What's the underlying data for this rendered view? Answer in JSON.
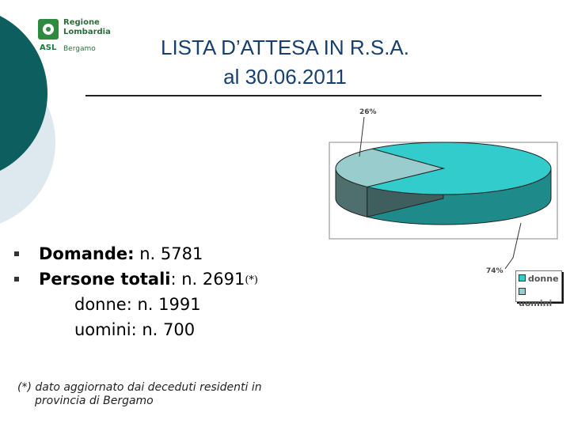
{
  "logo": {
    "line1": "Regione",
    "line2": "Lombardia",
    "asl": "ASL",
    "city": "Bergamo"
  },
  "title": {
    "line1": "LISTA D’ATTESA IN R.S.A.",
    "line2": "al 30.06.2011"
  },
  "bullets": [
    {
      "label": "Domande:",
      "value": " n. 5781"
    },
    {
      "label": "Persone totali",
      "value": ": n. 2691",
      "ref": "(*)"
    }
  ],
  "sub_items": [
    "donne: n. 1991",
    "uomini: n. 700"
  ],
  "footnote": {
    "line1": "(*) dato aggiornato dai deceduti residenti in",
    "line2": "provincia di Bergamo"
  },
  "colors": {
    "donne": "#33cccc",
    "uomini": "#99cccc",
    "title": "#17406e",
    "accent": "#0d5e5e"
  },
  "chart_data": {
    "type": "pie",
    "categories": [
      "donne",
      "uomini"
    ],
    "values": [
      74,
      26
    ],
    "data_labels": [
      "74%",
      "26%"
    ],
    "legend_position": "bottom-right",
    "style": "3d"
  }
}
